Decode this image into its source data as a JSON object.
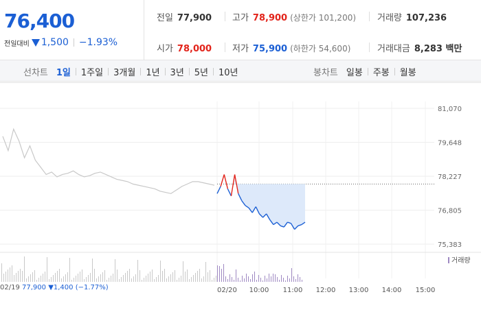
{
  "quote": {
    "price": "76,400",
    "change_label": "전일대비",
    "change_value": "1,500",
    "change_pct": "−1.93%"
  },
  "stats": {
    "prev_close": {
      "label": "전일",
      "value": "77,900"
    },
    "high": {
      "label": "고가",
      "value": "78,900",
      "sub": "(상한가 101,200)"
    },
    "volume": {
      "label": "거래량",
      "value": "107,236"
    },
    "open": {
      "label": "시가",
      "value": "78,000"
    },
    "low": {
      "label": "저가",
      "value": "75,900",
      "sub": "(하한가 54,600)"
    },
    "amount": {
      "label": "거래대금",
      "value": "8,283 백만"
    }
  },
  "toolbar": {
    "line_label": "선차트",
    "line_periods": [
      "1일",
      "1주일",
      "3개월",
      "1년",
      "3년",
      "5년",
      "10년"
    ],
    "active_line_period": "1일",
    "candle_label": "봉차트",
    "candle_periods": [
      "일봉",
      "주봉",
      "월봉"
    ]
  },
  "chart_data": {
    "type": "line",
    "y_ticks": [
      "81,070",
      "79,648",
      "78,227",
      "76,805",
      "75,383"
    ],
    "ylim": [
      75383,
      81070
    ],
    "x_ticks": [
      "02/19",
      "02/20",
      "10:00",
      "11:00",
      "12:00",
      "13:00",
      "14:00",
      "15:00"
    ],
    "reference_price": 77900,
    "legend": "거래량",
    "prev_day_info": {
      "date": "02/19",
      "close": "77,900",
      "change": "1,400",
      "pct": "(−1.77%)"
    },
    "colors": {
      "prev_day": "#c8c8c8",
      "today": "#1b5fd4",
      "above_ref": "#e2231a",
      "fill": "#dde9fa",
      "volume": "#9e88c2"
    },
    "prev_day_series": [
      79900,
      79300,
      80200,
      79700,
      79000,
      79500,
      78900,
      78600,
      78300,
      78400,
      78200,
      78300,
      78350,
      78450,
      78300,
      78200,
      78250,
      78350,
      78400,
      78300,
      78200,
      78100,
      78050,
      78000,
      77900,
      77850,
      77800,
      77750,
      77700,
      77600,
      77550,
      77500,
      77650,
      77800,
      77900,
      78000,
      78000,
      77950,
      77900,
      77850
    ],
    "today_series": [
      77500,
      77800,
      78300,
      77700,
      77400,
      78300,
      77500,
      77200,
      77000,
      76900,
      76700,
      76950,
      76650,
      76500,
      76650,
      76400,
      76200,
      76300,
      76150,
      76100,
      76300,
      76250,
      76000,
      76150,
      76200,
      76300
    ]
  }
}
